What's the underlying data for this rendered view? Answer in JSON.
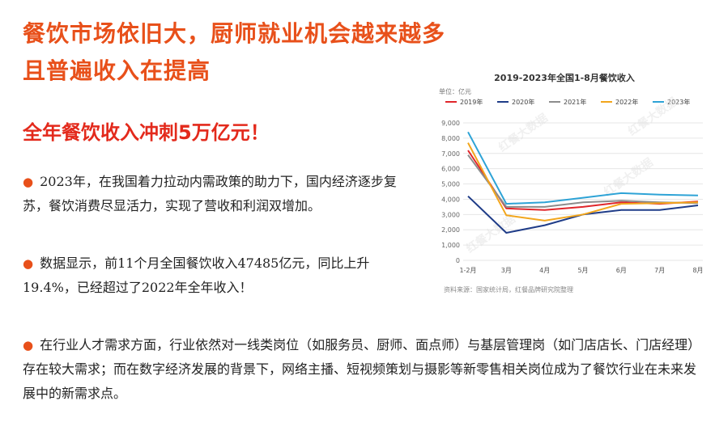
{
  "heading": {
    "line1": "餐饮市场依旧大，厨师就业机会越来越多",
    "line2": "且普遍收入在提高",
    "subheading": "全年餐饮收入冲刺5万亿元！"
  },
  "paragraphs": [
    {
      "bullet": "●",
      "text": "2023年，在我国着力拉动内需政策的助力下，国内经济逐步复苏，餐饮消费尽显活力，实现了营收和利润双增加。"
    },
    {
      "bullet": "●",
      "text": "数据显示，前11个月全国餐饮收入47485亿元，同比上升19.4%，已经超过了2022年全年收入！"
    },
    {
      "bullet": "●",
      "text": "在行业人才需求方面，行业依然对一线类岗位（如服务员、厨师、面点师）与基层管理岗（如门店店长、门店经理）存在较大需求；而在数字经济发展的背景下，网络主播、短视频策划与摄影等新零售相关岗位成为了餐饮行业在未来发展中的新需求点。"
    }
  ],
  "chart_data": {
    "type": "line",
    "title": "2019-2023年全国1-8月餐饮收入",
    "unit_label": "单位：亿元",
    "source": "资料来源：国家统计局，红餐品牌研究院整理",
    "watermark": "红餐大数据",
    "categories": [
      "1-2月",
      "3月",
      "4月",
      "5月",
      "6月",
      "7月",
      "8月"
    ],
    "ylim": [
      0,
      9000
    ],
    "yticks": [
      "0",
      "1,000",
      "2,000",
      "3,000",
      "4,000",
      "5,000",
      "6,000",
      "7,000",
      "8,000",
      "9,000"
    ],
    "grid": true,
    "legend_position": "top",
    "series": [
      {
        "name": "2019年",
        "color": "#e0262b",
        "values": [
          7200,
          3400,
          3300,
          3500,
          3800,
          3700,
          3850
        ]
      },
      {
        "name": "2020年",
        "color": "#1f3c88",
        "values": [
          4200,
          1800,
          2300,
          3000,
          3300,
          3300,
          3600
        ]
      },
      {
        "name": "2021年",
        "color": "#8c8c8c",
        "values": [
          6900,
          3500,
          3500,
          3800,
          3900,
          3800,
          3750
        ]
      },
      {
        "name": "2022年",
        "color": "#f2a61c",
        "values": [
          7700,
          2950,
          2600,
          3000,
          3700,
          3750,
          3800
        ]
      },
      {
        "name": "2023年",
        "color": "#2ea3d6",
        "values": [
          8400,
          3700,
          3800,
          4100,
          4400,
          4300,
          4250
        ]
      }
    ]
  }
}
